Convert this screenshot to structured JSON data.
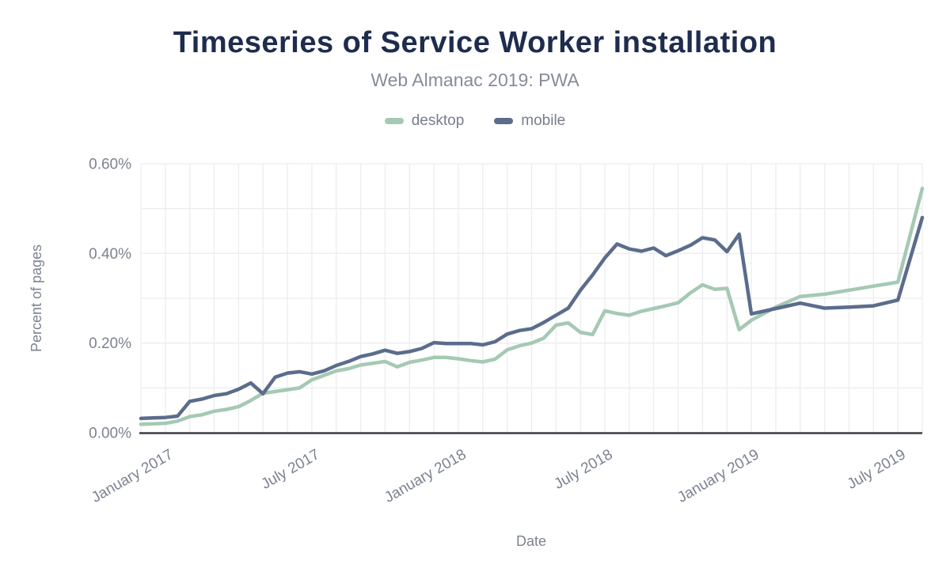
{
  "chart_data": {
    "type": "line",
    "title": "Timeseries of Service Worker installation",
    "subtitle": "Web Almanac 2019: PWA",
    "xlabel": "Date",
    "ylabel": "Percent of pages",
    "ylim": [
      0,
      0.6
    ],
    "y_grid_step": 0.1,
    "grid_on": true,
    "legend_position": "top",
    "colors": {
      "desktop": "#a5c9b3",
      "mobile": "#5b6c8c",
      "title": "#1e2c4e",
      "subtitle": "#848d99",
      "tick": "#7b8290",
      "grid": "#ecedf0",
      "axis_line": "#3a3d44",
      "background": "#ffffff"
    },
    "y_ticks": [
      {
        "value": 0.0,
        "label": "0.00%"
      },
      {
        "value": 0.2,
        "label": "0.20%"
      },
      {
        "value": 0.4,
        "label": "0.40%"
      },
      {
        "value": 0.6,
        "label": "0.60%"
      }
    ],
    "x_ticks": [
      {
        "date": "2017-01-01",
        "label": "January 2017"
      },
      {
        "date": "2017-07-01",
        "label": "July 2017"
      },
      {
        "date": "2018-01-01",
        "label": "January 2018"
      },
      {
        "date": "2018-07-01",
        "label": "July 2018"
      },
      {
        "date": "2019-01-01",
        "label": "January 2019"
      },
      {
        "date": "2019-07-01",
        "label": "July 2019"
      }
    ],
    "x_range": [
      "2016-12-01",
      "2019-08-01"
    ],
    "dates": [
      "2016-12-01",
      "2016-12-15",
      "2017-01-01",
      "2017-01-15",
      "2017-02-01",
      "2017-02-15",
      "2017-03-01",
      "2017-03-15",
      "2017-04-01",
      "2017-04-15",
      "2017-05-01",
      "2017-05-15",
      "2017-06-01",
      "2017-06-15",
      "2017-07-01",
      "2017-07-15",
      "2017-08-01",
      "2017-08-15",
      "2017-09-01",
      "2017-09-15",
      "2017-10-01",
      "2017-10-15",
      "2017-11-01",
      "2017-11-15",
      "2017-12-01",
      "2017-12-15",
      "2018-01-01",
      "2018-01-15",
      "2018-02-01",
      "2018-02-15",
      "2018-03-01",
      "2018-03-15",
      "2018-04-01",
      "2018-04-15",
      "2018-05-01",
      "2018-05-15",
      "2018-06-01",
      "2018-06-15",
      "2018-07-01",
      "2018-07-15",
      "2018-08-01",
      "2018-08-15",
      "2018-09-01",
      "2018-09-15",
      "2018-10-01",
      "2018-10-15",
      "2018-11-01",
      "2018-11-15",
      "2018-12-01",
      "2018-12-15",
      "2019-01-01",
      "2019-02-01",
      "2019-03-01",
      "2019-04-01",
      "2019-05-01",
      "2019-06-01",
      "2019-07-01",
      "2019-08-01"
    ],
    "series": [
      {
        "name": "desktop",
        "color": "#a5c9b3",
        "values": [
          0.019,
          0.02,
          0.021,
          0.026,
          0.036,
          0.04,
          0.048,
          0.052,
          0.058,
          0.072,
          0.088,
          0.092,
          0.096,
          0.1,
          0.118,
          0.128,
          0.138,
          0.143,
          0.151,
          0.155,
          0.159,
          0.147,
          0.157,
          0.162,
          0.168,
          0.168,
          0.165,
          0.161,
          0.158,
          0.164,
          0.185,
          0.194,
          0.2,
          0.211,
          0.24,
          0.245,
          0.224,
          0.219,
          0.272,
          0.266,
          0.262,
          0.271,
          0.277,
          0.283,
          0.29,
          0.312,
          0.33,
          0.32,
          0.322,
          0.23,
          0.251,
          0.28,
          0.304,
          0.309,
          0.318,
          0.327,
          0.336,
          0.545
        ]
      },
      {
        "name": "mobile",
        "color": "#5b6c8c",
        "values": [
          0.032,
          0.033,
          0.034,
          0.037,
          0.07,
          0.075,
          0.083,
          0.087,
          0.097,
          0.111,
          0.087,
          0.124,
          0.133,
          0.136,
          0.131,
          0.138,
          0.15,
          0.159,
          0.17,
          0.176,
          0.184,
          0.177,
          0.181,
          0.188,
          0.201,
          0.199,
          0.199,
          0.199,
          0.196,
          0.203,
          0.22,
          0.228,
          0.232,
          0.246,
          0.262,
          0.278,
          0.318,
          0.352,
          0.39,
          0.421,
          0.41,
          0.405,
          0.412,
          0.395,
          0.406,
          0.418,
          0.435,
          0.43,
          0.404,
          0.443,
          0.265,
          0.277,
          0.289,
          0.278,
          0.28,
          0.283,
          0.296,
          0.48
        ]
      }
    ]
  }
}
